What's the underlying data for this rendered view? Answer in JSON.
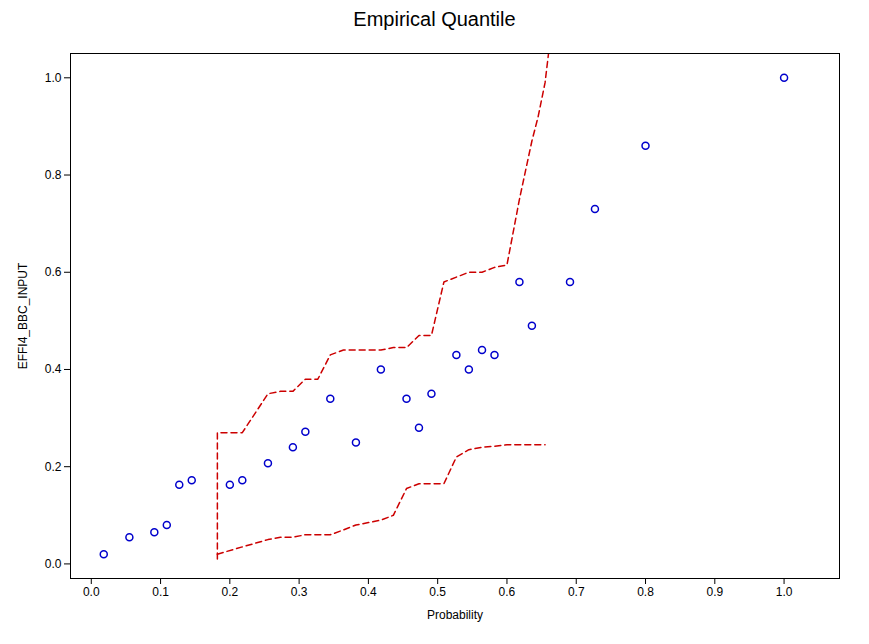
{
  "chart_data": {
    "type": "scatter",
    "title": "Empirical Quantile",
    "xlabel": "Probability",
    "ylabel": "EFFI4_BBC_INPUT",
    "xlim": [
      -0.03,
      1.08
    ],
    "ylim": [
      -0.03,
      1.05
    ],
    "xticks": [
      {
        "value": 0.0,
        "label": "0.0"
      },
      0.1,
      0.2,
      0.3,
      0.4,
      0.5,
      0.6,
      0.7,
      0.8,
      0.9,
      {
        "value": 1.0,
        "label": "1.0"
      }
    ],
    "yticks": [
      {
        "value": 0.0,
        "label": "0.0"
      },
      0.2,
      0.4,
      0.6,
      0.8,
      {
        "value": 1.0,
        "label": "1.0"
      }
    ],
    "grid": false,
    "series": [
      {
        "type": "scatter",
        "marker": "circle",
        "color": "#0000CC",
        "x": [
          0.018,
          0.055,
          0.091,
          0.109,
          0.127,
          0.145,
          0.2,
          0.218,
          0.255,
          0.291,
          0.309,
          0.345,
          0.382,
          0.418,
          0.455,
          0.473,
          0.491,
          0.527,
          0.545,
          0.564,
          0.582,
          0.618,
          0.636,
          0.691,
          0.727,
          0.8,
          1.0
        ],
        "values": [
          0.02,
          0.055,
          0.065,
          0.08,
          0.163,
          0.172,
          0.163,
          0.172,
          0.207,
          0.24,
          0.272,
          0.34,
          0.25,
          0.4,
          0.34,
          0.28,
          0.35,
          0.43,
          0.4,
          0.44,
          0.43,
          0.58,
          0.49,
          0.58,
          0.73,
          0.86,
          1.0
        ]
      },
      {
        "type": "line",
        "line_style": "dashed",
        "color": "#CC0000",
        "x": [
          0.182,
          0.182,
          0.218,
          0.255,
          0.273,
          0.291,
          0.309,
          0.327,
          0.345,
          0.364,
          0.382,
          0.4,
          0.418,
          0.436,
          0.455,
          0.473,
          0.491,
          0.509,
          0.527,
          0.545,
          0.564,
          0.582,
          0.6,
          0.618,
          0.636,
          0.645,
          0.655,
          0.66
        ],
        "values": [
          0.01,
          0.27,
          0.27,
          0.35,
          0.355,
          0.355,
          0.38,
          0.38,
          0.43,
          0.44,
          0.44,
          0.44,
          0.44,
          0.445,
          0.445,
          0.47,
          0.47,
          0.58,
          0.59,
          0.6,
          0.6,
          0.61,
          0.615,
          0.75,
          0.87,
          0.92,
          0.99,
          1.05
        ]
      },
      {
        "type": "line",
        "line_style": "dashed",
        "color": "#CC0000",
        "x": [
          0.182,
          0.182,
          0.218,
          0.255,
          0.273,
          0.291,
          0.309,
          0.327,
          0.345,
          0.364,
          0.382,
          0.4,
          0.418,
          0.436,
          0.455,
          0.473,
          0.491,
          0.509,
          0.527,
          0.545,
          0.564,
          0.582,
          0.6,
          0.618,
          0.636,
          0.655
        ],
        "values": [
          0.02,
          0.02,
          0.035,
          0.05,
          0.055,
          0.055,
          0.06,
          0.06,
          0.06,
          0.07,
          0.08,
          0.085,
          0.09,
          0.1,
          0.155,
          0.165,
          0.165,
          0.165,
          0.22,
          0.235,
          0.24,
          0.242,
          0.245,
          0.245,
          0.245,
          0.245
        ]
      }
    ]
  }
}
